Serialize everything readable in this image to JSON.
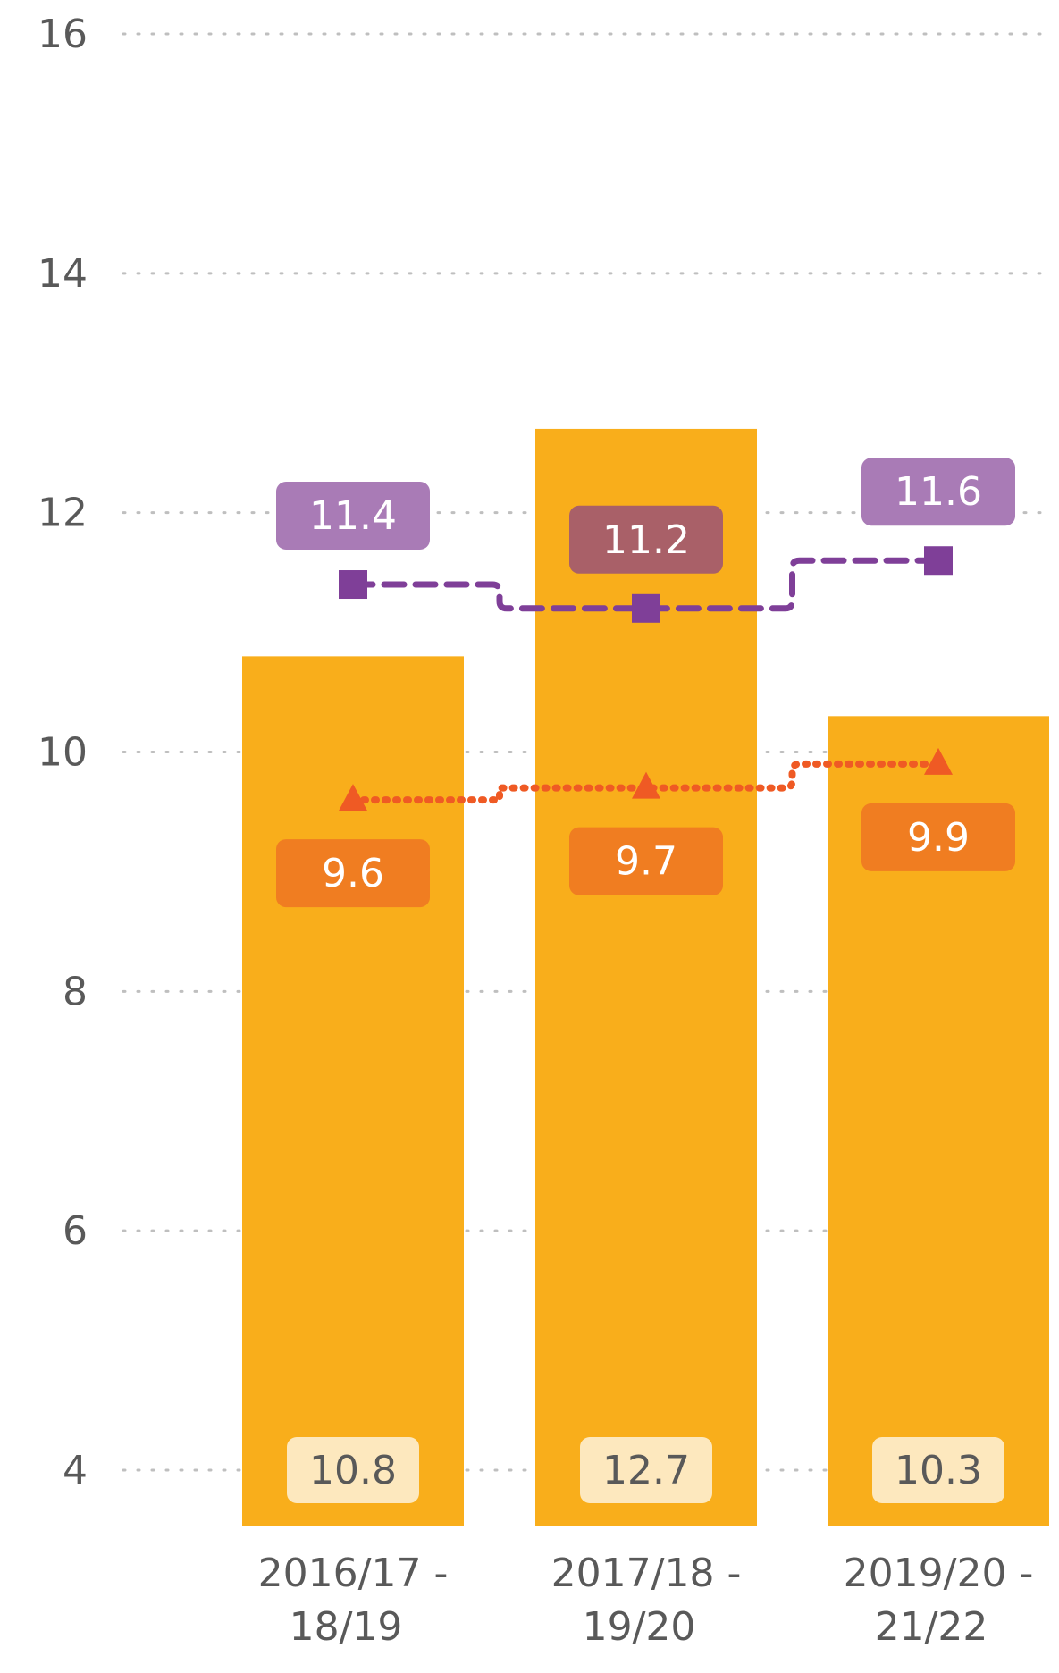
{
  "chart_data": {
    "type": "bar",
    "categories": [
      [
        "2016/17 -",
        "18/19"
      ],
      [
        "2017/18 -",
        "19/20"
      ],
      [
        "2019/20 -",
        "21/22"
      ]
    ],
    "bar_series": {
      "values": [
        10.8,
        12.7,
        10.3
      ],
      "labels": [
        "10.8",
        "12.7",
        "10.3"
      ],
      "color": "#F9AE1B",
      "label_bg": "#FDE8BE",
      "label_color": "#595959"
    },
    "line_series": [
      {
        "values": [
          11.4,
          11.2,
          11.6
        ],
        "labels": [
          "11.4",
          "11.2",
          "11.6"
        ],
        "color": "#7F3F98",
        "label_bgs": [
          "#A97BB6",
          "#A96068",
          "#A97BB6"
        ],
        "marker": "square",
        "dash": "dashed"
      },
      {
        "values": [
          9.6,
          9.7,
          9.9
        ],
        "labels": [
          "9.6",
          "9.7",
          "9.9"
        ],
        "color": "#EF5A24",
        "label_bgs": [
          "#F07D21",
          "#F07D21",
          "#F07D21"
        ],
        "marker": "triangle",
        "dash": "dotted"
      }
    ],
    "y_ticks": [
      "4",
      "6",
      "8",
      "10",
      "12",
      "14",
      "16"
    ],
    "ylim": [
      4,
      16
    ],
    "grid": true,
    "grid_color": "#BFBFBF"
  }
}
